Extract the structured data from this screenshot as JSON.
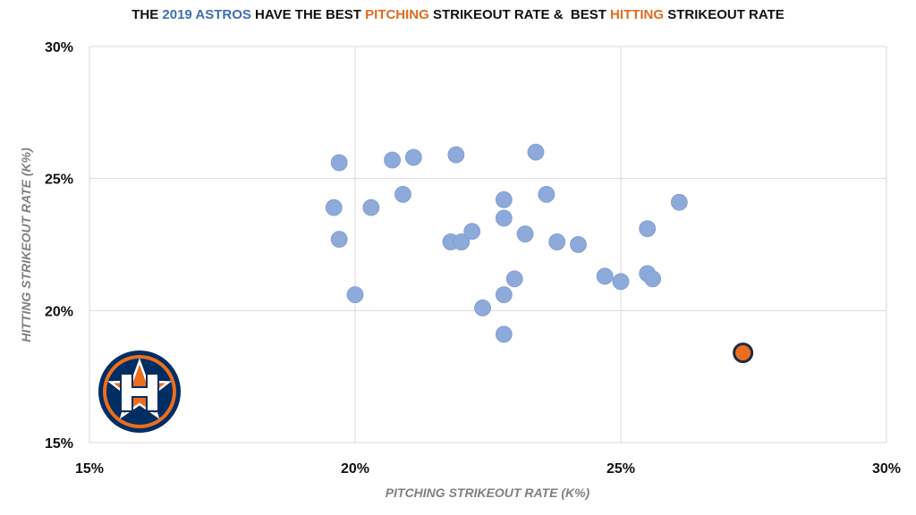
{
  "chart_data": {
    "type": "scatter",
    "title_parts": [
      {
        "text": "THE ",
        "color": "#111111"
      },
      {
        "text": "2019 ASTROS",
        "color": "#3f6eb0"
      },
      {
        "text": " HAVE THE BEST ",
        "color": "#111111"
      },
      {
        "text": "PITCHING",
        "color": "#e06d22"
      },
      {
        "text": " STRIKEOUT RATE &  BEST ",
        "color": "#111111"
      },
      {
        "text": "HITTING",
        "color": "#e06d22"
      },
      {
        "text": " STRIKEOUT RATE",
        "color": "#111111"
      }
    ],
    "xlabel": "PITCHING STRIKEOUT RATE (K%)",
    "ylabel": "HITTING STRIKEOUT RATE (K%)",
    "xlim": [
      15,
      30
    ],
    "ylim": [
      15,
      30
    ],
    "x_ticks": [
      15,
      20,
      25,
      30
    ],
    "y_ticks": [
      15,
      20,
      25,
      30
    ],
    "x_tick_labels": [
      "15%",
      "20%",
      "25%",
      "30%"
    ],
    "y_tick_labels": [
      "15%",
      "20%",
      "25%",
      "30%"
    ],
    "grid": true,
    "series": [
      {
        "color": "#8eaadb",
        "points": [
          {
            "x": 19.6,
            "y": 23.9
          },
          {
            "x": 19.7,
            "y": 25.6
          },
          {
            "x": 19.7,
            "y": 22.7
          },
          {
            "x": 20.0,
            "y": 20.6
          },
          {
            "x": 20.3,
            "y": 23.9
          },
          {
            "x": 20.7,
            "y": 25.7
          },
          {
            "x": 20.9,
            "y": 24.4
          },
          {
            "x": 21.1,
            "y": 25.8
          },
          {
            "x": 21.8,
            "y": 22.6
          },
          {
            "x": 21.9,
            "y": 25.9
          },
          {
            "x": 22.0,
            "y": 22.6
          },
          {
            "x": 22.2,
            "y": 23.0
          },
          {
            "x": 22.4,
            "y": 20.1
          },
          {
            "x": 22.8,
            "y": 24.2
          },
          {
            "x": 22.8,
            "y": 23.5
          },
          {
            "x": 22.8,
            "y": 20.6
          },
          {
            "x": 22.8,
            "y": 19.1
          },
          {
            "x": 23.0,
            "y": 21.2
          },
          {
            "x": 23.2,
            "y": 22.9
          },
          {
            "x": 23.4,
            "y": 26.0
          },
          {
            "x": 23.6,
            "y": 24.4
          },
          {
            "x": 23.8,
            "y": 22.6
          },
          {
            "x": 24.2,
            "y": 22.5
          },
          {
            "x": 24.7,
            "y": 21.3
          },
          {
            "x": 25.0,
            "y": 21.1
          },
          {
            "x": 25.5,
            "y": 23.1
          },
          {
            "x": 25.5,
            "y": 21.4
          },
          {
            "x": 25.6,
            "y": 21.2
          },
          {
            "x": 26.1,
            "y": 24.1
          }
        ]
      },
      {
        "color": "#eb6e1f",
        "stroke": "#1f2a44",
        "points": [
          {
            "x": 27.3,
            "y": 18.4
          }
        ]
      }
    ]
  },
  "logo": {
    "name": "houston-astros-logo",
    "navy": "#002d62",
    "orange": "#eb6e1f",
    "white": "#ffffff"
  }
}
